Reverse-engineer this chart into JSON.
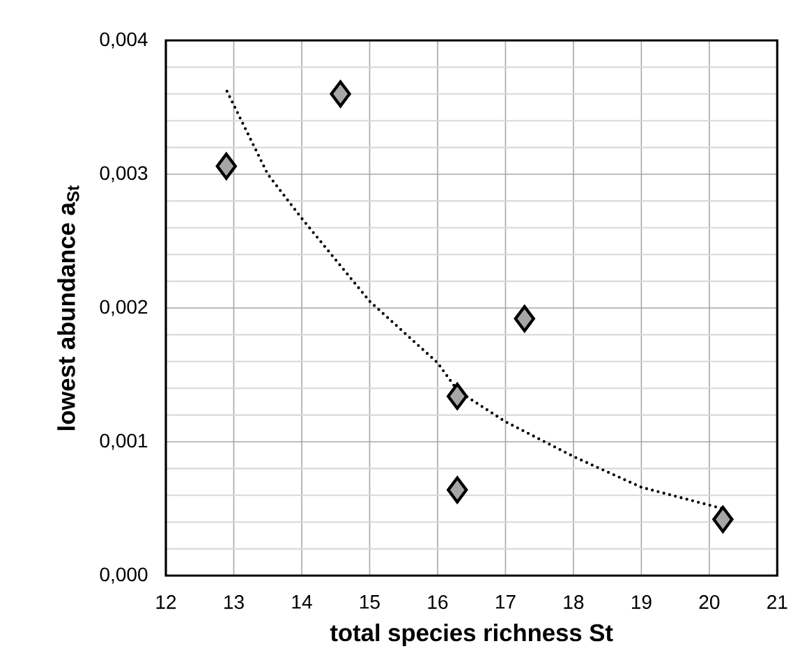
{
  "chart_data": {
    "type": "scatter",
    "xlabel": "total species richness St",
    "ylabel": "lowest abundance a$_{St}$",
    "xlim": [
      12,
      21
    ],
    "ylim": [
      0,
      0.004
    ],
    "xticks": [
      12,
      13,
      14,
      15,
      16,
      17,
      18,
      19,
      20,
      21
    ],
    "yticks": [
      {
        "value": 0,
        "label": "0,000"
      },
      {
        "value": 0.001,
        "label": "0,001"
      },
      {
        "value": 0.002,
        "label": "0,002"
      },
      {
        "value": 0.003,
        "label": "0,003"
      },
      {
        "value": 0.004,
        "label": "0,004"
      }
    ],
    "grid": true,
    "series": [
      {
        "marker": "diamond",
        "color": "#a6a6a6",
        "x": [
          12.89,
          14.57,
          17.28,
          16.29,
          16.29,
          20.2
        ],
        "values": [
          0.00306,
          0.0036,
          0.00192,
          0.00134,
          0.00064,
          0.00042
        ]
      },
      {
        "type": "line",
        "marker": "none",
        "line_style": "dotted",
        "color": "#000000",
        "x": [
          12.9,
          13.5,
          14,
          15,
          16,
          16.3,
          17,
          18,
          19,
          20.2
        ],
        "values": [
          0.00362,
          0.003,
          0.00267,
          0.00205,
          0.00159,
          0.00138,
          0.00115,
          0.00089,
          0.00066,
          0.0005
        ]
      }
    ]
  }
}
